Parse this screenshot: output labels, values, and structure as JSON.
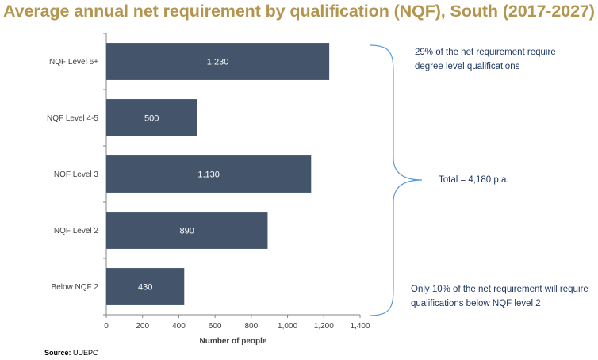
{
  "title": "Average annual net requirement by qualification (NQF), South (2017-2027)",
  "chart_data": {
    "type": "bar",
    "orientation": "horizontal",
    "categories": [
      "NQF Level 6+",
      "NQF Level 4-5",
      "NQF Level 3",
      "NQF Level 2",
      "Below NQF 2"
    ],
    "values": [
      1230,
      500,
      1130,
      890,
      430
    ],
    "value_labels": [
      "1,230",
      "500",
      "1,130",
      "890",
      "430"
    ],
    "xlabel": "Number of people",
    "ylabel": "",
    "xlim": [
      0,
      1400
    ],
    "x_ticks": [
      0,
      200,
      400,
      600,
      800,
      1000,
      1200,
      1400
    ],
    "x_tick_labels": [
      "0",
      "200",
      "400",
      "600",
      "800",
      "1,000",
      "1,200",
      "1,400"
    ],
    "bar_color": "#44546a",
    "grid": false,
    "legend": "none"
  },
  "annotations": {
    "top_note": "29% of the net requirement require degree level qualifications",
    "total_note": "Total = 4,180 p.a.",
    "bottom_note": "Only 10% of the net requirement will require qualifications below NQF level 2",
    "brace_color": "#5b9bd5"
  },
  "source": {
    "label": "Source:",
    "text": "UUEPC"
  },
  "colors": {
    "title": "#b3954f",
    "note_text": "#1f3864"
  }
}
